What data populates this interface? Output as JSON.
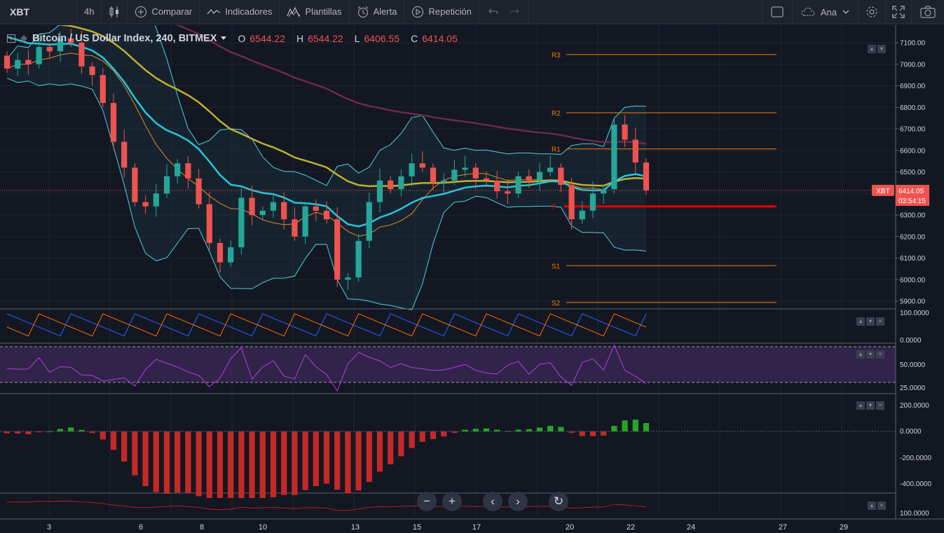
{
  "toolbar": {
    "symbol": "XBT",
    "interval": "4h",
    "compare_label": "Comparar",
    "indicators_label": "Indicadores",
    "templates_label": "Plantillas",
    "alert_label": "Alerta",
    "replay_label": "Repetición",
    "layout_name": "Ana"
  },
  "legend": {
    "title": "Bitcoin / US Dollar Index, 240, BITMEX",
    "o_key": "O",
    "o_val": "6544.22",
    "h_key": "H",
    "h_val": "6544.22",
    "l_key": "L",
    "l_val": "6406.55",
    "c_key": "C",
    "c_val": "6414.05"
  },
  "colors": {
    "up": "#26a69a",
    "down": "#ef5350",
    "bb": "#4dd0e1",
    "ma_cyan": "#26c6da",
    "ma_yellow": "#c0b02e",
    "ma_maroon": "#6d2a4a",
    "pivot": "#f57c00",
    "pivot_p": "#e00000",
    "rsi": "#b33ee0",
    "rsi_bg": "#3e2a5a"
  },
  "price_badge": {
    "symbol": "XBT",
    "price": "6414.05",
    "countdown": "03:54:15"
  },
  "pivots": {
    "r3": {
      "label": "R3",
      "price": 7045
    },
    "r2": {
      "label": "R2",
      "price": 6775
    },
    "r1": {
      "label": "R1",
      "price": 6607
    },
    "p": {
      "label": "P",
      "price": 6340
    },
    "s1": {
      "label": "S1",
      "price": 6065
    },
    "s2": {
      "label": "S2",
      "price": 5894
    }
  },
  "panes": {
    "stoch": {
      "ticks": [
        "100.0000",
        "0.0000"
      ]
    },
    "rsi": {
      "ticks": [
        "50.0000",
        "25.0000"
      ]
    },
    "macd": {
      "ticks": [
        "200.0000",
        "0.0000",
        "-200.0000",
        "-400.0000"
      ]
    },
    "bottom": {
      "ticks": [
        "100.0000"
      ]
    }
  },
  "icons": {
    "candles": "candlestick-icon",
    "compare": "plus-circle-icon",
    "indicators": "wave-icon",
    "templates": "templates-icon",
    "alert": "alarm-clock-icon",
    "replay": "replay-icon",
    "undo": "undo-icon",
    "redo": "redo-icon",
    "fullscreen": "fullscreen-icon",
    "cloud": "cloud-icon",
    "settings": "gear-icon",
    "expand": "expand-icon",
    "snapshot": "camera-icon"
  },
  "chart_data": {
    "type": "candlestick",
    "ylim": [
      5860,
      7150
    ],
    "y_ticks": [
      7100,
      7000,
      6900,
      6800,
      6700,
      6600,
      6500,
      6400,
      6300,
      6200,
      6100,
      6000,
      5900
    ],
    "x_ticks": [
      "3",
      "6",
      "8",
      "10",
      "13",
      "15",
      "17",
      "20",
      "22",
      "24",
      "27",
      "29"
    ],
    "last_price": 6414.05,
    "candles_close": [
      6980,
      7020,
      7000,
      7080,
      7060,
      7120,
      7100,
      6990,
      6950,
      6820,
      6640,
      6520,
      6360,
      6340,
      6400,
      6480,
      6540,
      6470,
      6350,
      6170,
      6080,
      6150,
      6380,
      6300,
      6320,
      6360,
      6280,
      6200,
      6340,
      6320,
      6280,
      6000,
      6010,
      6180,
      6360,
      6460,
      6420,
      6480,
      6540,
      6520,
      6450,
      6460,
      6510,
      6520,
      6470,
      6460,
      6410,
      6400,
      6480,
      6460,
      6500,
      6520,
      6440,
      6280,
      6320,
      6400,
      6420,
      6720,
      6650,
      6544,
      6414
    ]
  }
}
